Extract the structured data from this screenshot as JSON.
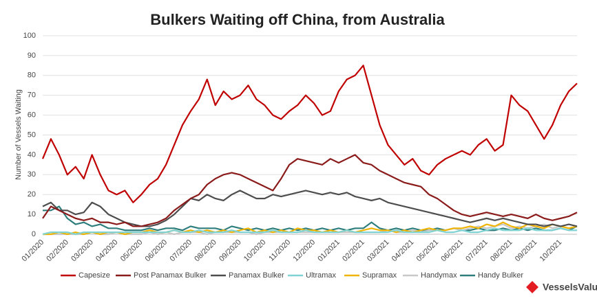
{
  "chart_data": {
    "type": "line",
    "title": "Bulkers Waiting off China, from Australia",
    "y_label": "Number of Vessels Waiting",
    "brand": "VesselsValue",
    "grid": true,
    "legend": "bottom",
    "ylim": [
      0,
      100
    ],
    "yticks": [
      0,
      10,
      20,
      30,
      40,
      50,
      60,
      70,
      80,
      90,
      100
    ],
    "categories": [
      "01/2020",
      null,
      null,
      "02/2020",
      null,
      null,
      "03/2020",
      null,
      null,
      "04/2020",
      null,
      null,
      "05/2020",
      null,
      null,
      "06/2020",
      null,
      null,
      "07/2020",
      null,
      null,
      "08/2020",
      null,
      null,
      "09/2020",
      null,
      null,
      "10/2020",
      null,
      null,
      "11/2020",
      null,
      null,
      "12/2020",
      null,
      null,
      "01/2021",
      null,
      null,
      "02/2021",
      null,
      null,
      "03/2021",
      null,
      null,
      "04/2021",
      null,
      null,
      "05/2021",
      null,
      null,
      "06/2021",
      null,
      null,
      "07/2021",
      null,
      null,
      "08/2021",
      null,
      null,
      "09/2021",
      null,
      null,
      "10/2021",
      null,
      null
    ],
    "series": [
      {
        "name": "Capesize",
        "color": "#c00000",
        "values": [
          38,
          48,
          40,
          30,
          34,
          28,
          40,
          30,
          22,
          20,
          22,
          16,
          20,
          25,
          28,
          35,
          45,
          55,
          62,
          68,
          78,
          65,
          72,
          68,
          70,
          75,
          68,
          65,
          60,
          58,
          62,
          65,
          70,
          66,
          60,
          62,
          72,
          78,
          80,
          85,
          70,
          55,
          45,
          40,
          35,
          38,
          32,
          30,
          35,
          38,
          40,
          42,
          40,
          45,
          48,
          42,
          45,
          70,
          65,
          62,
          55,
          48,
          55,
          65,
          72,
          76
        ]
      },
      {
        "name": "Post Panamax Bulker",
        "color": "#8b1a1a",
        "values": [
          8,
          14,
          12,
          10,
          8,
          7,
          8,
          6,
          6,
          5,
          6,
          4,
          4,
          5,
          6,
          8,
          12,
          15,
          18,
          20,
          25,
          28,
          30,
          31,
          30,
          28,
          26,
          24,
          22,
          28,
          35,
          38,
          37,
          36,
          35,
          38,
          36,
          38,
          40,
          36,
          35,
          32,
          30,
          28,
          26,
          25,
          24,
          20,
          18,
          15,
          12,
          10,
          9,
          10,
          11,
          10,
          9,
          10,
          9,
          8,
          10,
          8,
          7,
          8,
          9,
          11
        ]
      },
      {
        "name": "Panamax Bulker",
        "color": "#4d4d4d",
        "values": [
          14,
          16,
          12,
          12,
          10,
          11,
          16,
          14,
          10,
          8,
          6,
          5,
          4,
          4,
          5,
          7,
          10,
          14,
          18,
          17,
          20,
          18,
          17,
          20,
          22,
          20,
          18,
          18,
          20,
          19,
          20,
          21,
          22,
          21,
          20,
          21,
          20,
          21,
          19,
          18,
          17,
          18,
          16,
          15,
          14,
          13,
          12,
          11,
          10,
          9,
          8,
          7,
          6,
          7,
          8,
          7,
          8,
          7,
          6,
          5,
          5,
          4,
          5,
          4,
          5,
          4
        ]
      },
      {
        "name": "Ultramax",
        "color": "#7fd3d3",
        "values": [
          0,
          1,
          1,
          1,
          0,
          1,
          1,
          1,
          1,
          1,
          1,
          1,
          1,
          1,
          1,
          1,
          2,
          1,
          1,
          2,
          1,
          1,
          1,
          2,
          1,
          1,
          1,
          1,
          2,
          1,
          1,
          1,
          2,
          1,
          1,
          1,
          1,
          2,
          1,
          1,
          1,
          1,
          1,
          2,
          1,
          1,
          1,
          1,
          2,
          1,
          1,
          2,
          1,
          1,
          2,
          3,
          2,
          2,
          2,
          3,
          2,
          2,
          2,
          3,
          2,
          2
        ]
      },
      {
        "name": "Supramax",
        "color": "#f0b400",
        "values": [
          0,
          0,
          1,
          0,
          1,
          0,
          1,
          0,
          1,
          1,
          0,
          1,
          1,
          2,
          1,
          1,
          2,
          1,
          2,
          1,
          2,
          1,
          2,
          1,
          2,
          3,
          1,
          2,
          1,
          2,
          1,
          3,
          2,
          2,
          1,
          2,
          1,
          2,
          1,
          2,
          3,
          2,
          2,
          1,
          2,
          1,
          2,
          3,
          2,
          2,
          3,
          3,
          4,
          3,
          5,
          4,
          6,
          4,
          3,
          5,
          4,
          3,
          5,
          4,
          3,
          4
        ]
      },
      {
        "name": "Handymax",
        "color": "#c8c8c8",
        "values": [
          0,
          0,
          0,
          0,
          0,
          0,
          1,
          0,
          0,
          1,
          0,
          0,
          0,
          1,
          0,
          1,
          0,
          1,
          1,
          1,
          0,
          1,
          1,
          1,
          1,
          1,
          0,
          1,
          1,
          1,
          1,
          1,
          1,
          1,
          1,
          1,
          1,
          1,
          1,
          1,
          1,
          1,
          2,
          1,
          1,
          2,
          1,
          2,
          2,
          2,
          3,
          2,
          3,
          4,
          3,
          4,
          5,
          3,
          4,
          3,
          4,
          5,
          3,
          4,
          3,
          4
        ]
      },
      {
        "name": "Handy Bulker",
        "color": "#2e7d7d",
        "values": [
          12,
          12,
          14,
          8,
          5,
          6,
          4,
          5,
          3,
          3,
          2,
          2,
          2,
          3,
          2,
          3,
          3,
          2,
          4,
          3,
          3,
          3,
          2,
          4,
          3,
          2,
          3,
          2,
          3,
          2,
          3,
          2,
          3,
          2,
          3,
          2,
          3,
          2,
          3,
          3,
          6,
          3,
          2,
          3,
          2,
          3,
          2,
          2,
          3,
          2,
          3,
          2,
          2,
          3,
          2,
          2,
          3,
          2,
          3,
          2,
          3,
          2,
          2,
          3,
          2,
          4
        ]
      }
    ]
  }
}
